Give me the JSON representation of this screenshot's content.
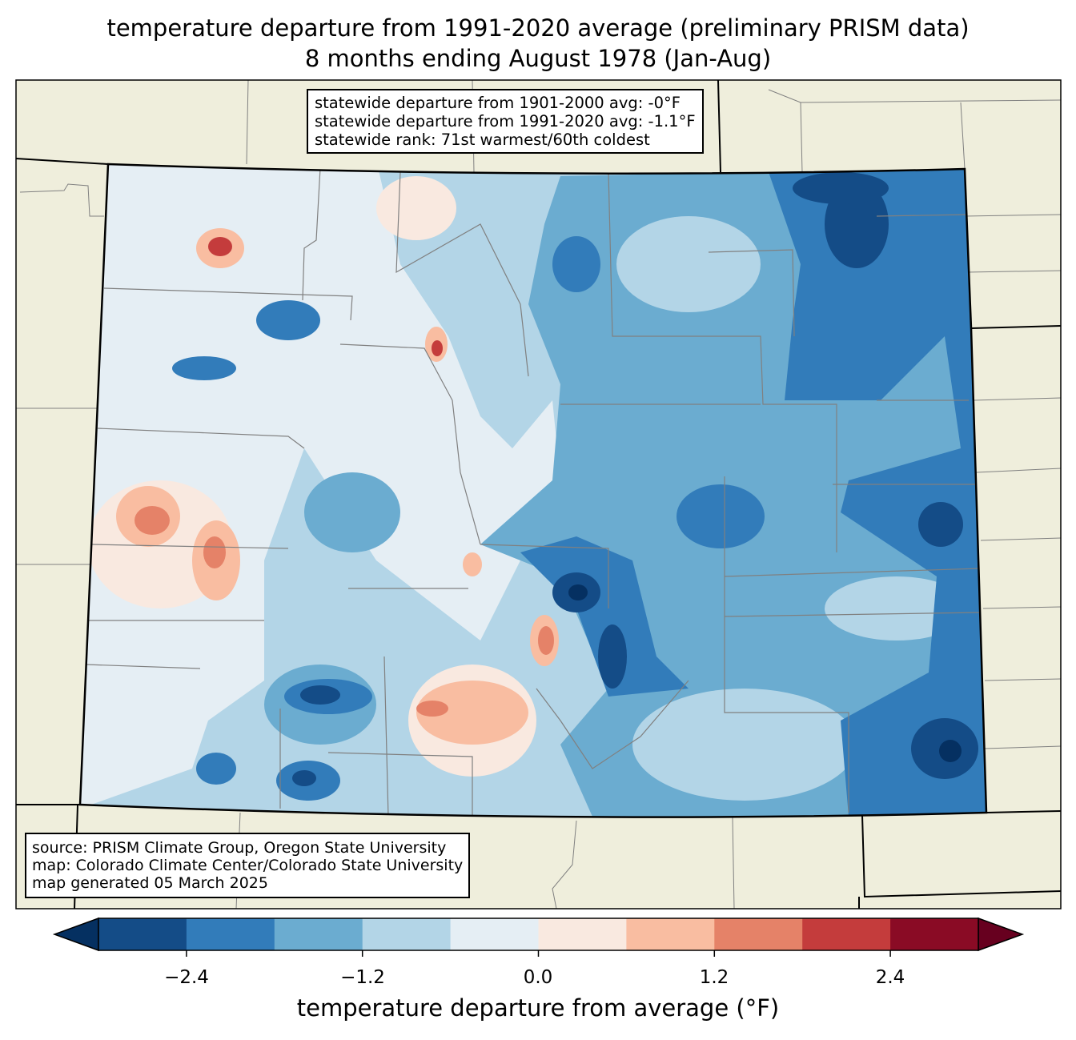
{
  "title": {
    "line1": "temperature departure from 1991-2020 average (preliminary PRISM data)",
    "line2": "8 months ending August 1978 (Jan-Aug)"
  },
  "stats_box": {
    "line1": "statewide departure from 1901-2000 avg: -0°F",
    "line2": "statewide departure from 1991-2020 avg: -1.1°F",
    "line3": "statewide rank: 71st warmest/60th coldest"
  },
  "source_box": {
    "line1": "source: PRISM Climate Group, Oregon State University",
    "line2": "map: Colorado Climate Center/Colorado State University",
    "line3": "map generated 05 March 2025"
  },
  "colorbar": {
    "label": "temperature departure from average (°F)",
    "ticks": [
      "−2.4",
      "−1.2",
      "0.0",
      "1.2",
      "2.4"
    ],
    "tick_values": [
      -2.4,
      -1.2,
      0.0,
      1.2,
      2.4
    ],
    "levels": [
      -3.0,
      -2.4,
      -1.8,
      -1.2,
      -0.6,
      0.0,
      0.6,
      1.2,
      1.8,
      2.4,
      3.0
    ],
    "under_color": "#053061",
    "over_color": "#67001f",
    "colors": [
      "#144c87",
      "#327cba",
      "#6bacd0",
      "#b3d5e7",
      "#e5eef4",
      "#f9e9e0",
      "#f9bda1",
      "#e58268",
      "#c43c3c",
      "#8a0b25"
    ]
  },
  "map_colors": {
    "land": "#efeedc",
    "county_line": "#808080",
    "border": "#000000"
  }
}
